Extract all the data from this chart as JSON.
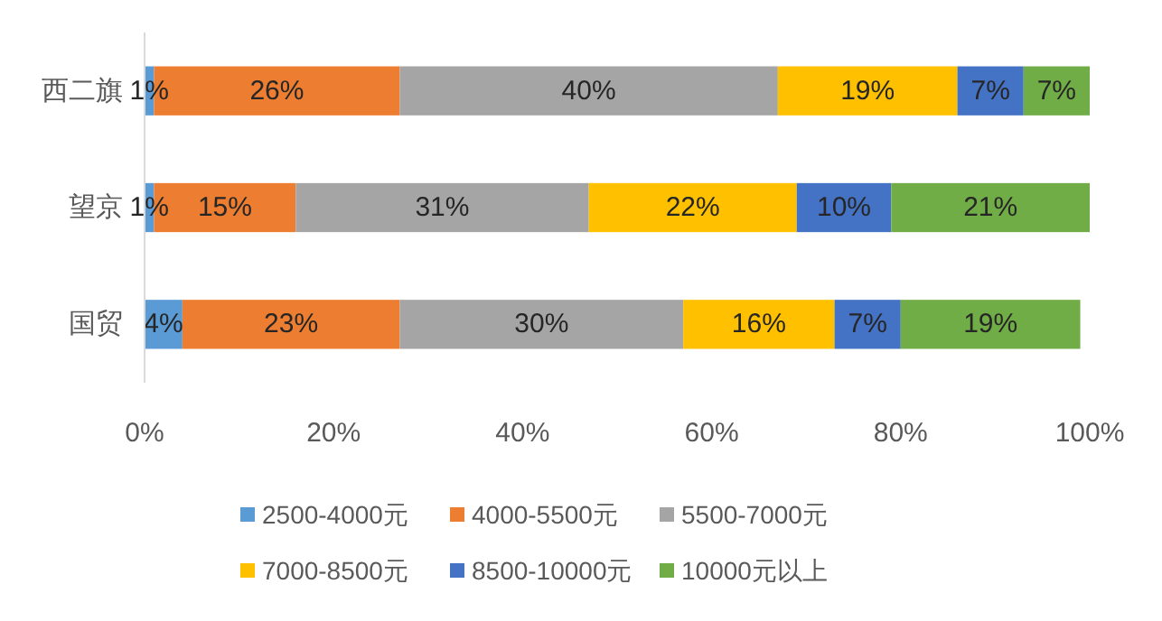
{
  "chart_data": {
    "type": "bar",
    "orientation": "horizontal",
    "stacked": true,
    "legend": "bottom",
    "grid": false,
    "categories": [
      "西二旗",
      "望京",
      "国贸"
    ],
    "xlim": [
      0,
      100
    ],
    "xticks": [
      {
        "value": 0,
        "label": "0%"
      },
      {
        "value": 20,
        "label": "20%"
      },
      {
        "value": 40,
        "label": "40%"
      },
      {
        "value": 60,
        "label": "60%"
      },
      {
        "value": 80,
        "label": "80%"
      },
      {
        "value": 100,
        "label": "100%"
      }
    ],
    "series": [
      {
        "name": "2500-4000元",
        "color": "#5b9bd5",
        "values": [
          1,
          1,
          4
        ],
        "value_labels": [
          "1%",
          "1%",
          "4%"
        ]
      },
      {
        "name": "4000-5500元",
        "color": "#ed7d31",
        "values": [
          26,
          15,
          23
        ],
        "value_labels": [
          "26%",
          "15%",
          "23%"
        ]
      },
      {
        "name": "5500-7000元",
        "color": "#a5a5a5",
        "values": [
          40,
          31,
          30
        ],
        "value_labels": [
          "40%",
          "31%",
          "30%"
        ]
      },
      {
        "name": "7000-8500元",
        "color": "#ffc000",
        "values": [
          19,
          22,
          16
        ],
        "value_labels": [
          "19%",
          "22%",
          "16%"
        ]
      },
      {
        "name": "8500-10000元",
        "color": "#4472c4",
        "values": [
          7,
          10,
          7
        ],
        "value_labels": [
          "7%",
          "10%",
          "7%"
        ]
      },
      {
        "name": "10000元以上",
        "color": "#70ad47",
        "values": [
          7,
          21,
          19
        ],
        "value_labels": [
          "7%",
          "21%",
          "19%"
        ]
      }
    ]
  }
}
